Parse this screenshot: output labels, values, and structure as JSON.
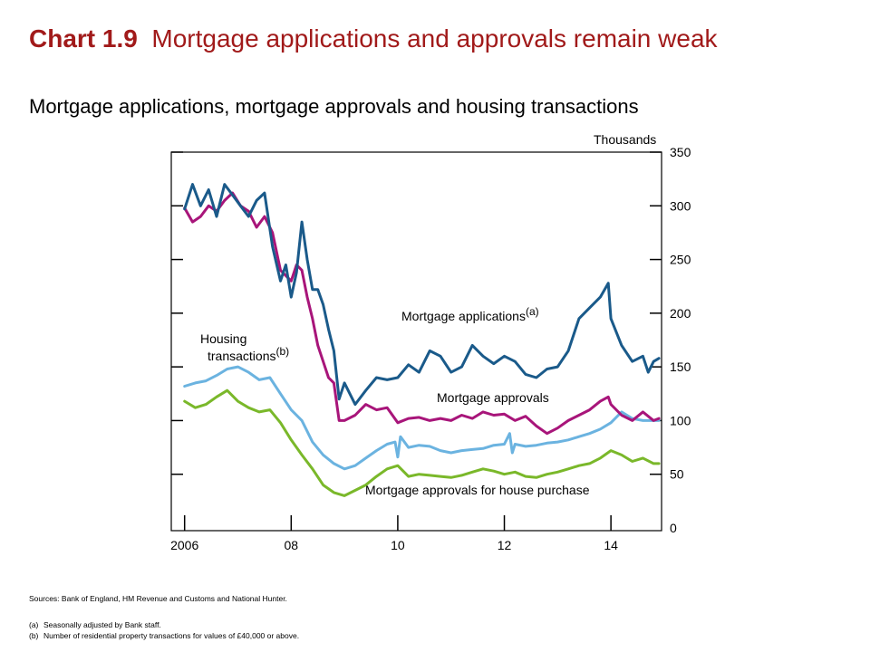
{
  "title": {
    "number": "Chart 1.9",
    "text": "Mortgage applications and approvals remain weak"
  },
  "subtitle": "Mortgage applications, mortgage approvals and housing transactions",
  "chart_data": {
    "type": "line",
    "y_unit_label": "Thousands",
    "ylim": [
      0,
      350
    ],
    "y_ticks": [
      "0",
      "50",
      "100",
      "150",
      "200",
      "250",
      "300",
      "350"
    ],
    "x_range": [
      2005.75,
      2014.95
    ],
    "x_ticks": [
      {
        "value": 2006,
        "label": "2006"
      },
      {
        "value": 2008,
        "label": "08"
      },
      {
        "value": 2010,
        "label": "10"
      },
      {
        "value": 2012,
        "label": "12"
      },
      {
        "value": 2014,
        "label": "14"
      }
    ],
    "grid": false,
    "series": [
      {
        "name": "Mortgage applications",
        "note": "(a)",
        "color": "#1a5a8a",
        "x": [
          2006.0,
          2006.15,
          2006.3,
          2006.45,
          2006.6,
          2006.75,
          2006.9,
          2007.05,
          2007.2,
          2007.35,
          2007.5,
          2007.65,
          2007.8,
          2007.9,
          2008.0,
          2008.1,
          2008.2,
          2008.3,
          2008.4,
          2008.5,
          2008.6,
          2008.7,
          2008.8,
          2008.9,
          2009.0,
          2009.2,
          2009.4,
          2009.6,
          2009.8,
          2010.0,
          2010.2,
          2010.4,
          2010.6,
          2010.8,
          2011.0,
          2011.2,
          2011.4,
          2011.6,
          2011.8,
          2012.0,
          2012.2,
          2012.4,
          2012.6,
          2012.8,
          2013.0,
          2013.2,
          2013.4,
          2013.6,
          2013.8,
          2013.95,
          2014.0,
          2014.2,
          2014.4,
          2014.6,
          2014.7,
          2014.8,
          2014.9
        ],
        "y": [
          297,
          320,
          300,
          315,
          290,
          320,
          310,
          300,
          290,
          305,
          312,
          262,
          230,
          245,
          215,
          238,
          285,
          250,
          222,
          222,
          208,
          185,
          165,
          120,
          135,
          115,
          128,
          140,
          138,
          140,
          152,
          145,
          165,
          160,
          145,
          150,
          170,
          160,
          153,
          160,
          155,
          143,
          140,
          148,
          150,
          165,
          195,
          205,
          215,
          228,
          195,
          170,
          155,
          160,
          145,
          155,
          158
        ]
      },
      {
        "name": "Mortgage approvals",
        "color": "#a8157a",
        "x": [
          2006.0,
          2006.15,
          2006.3,
          2006.45,
          2006.6,
          2006.75,
          2006.9,
          2007.05,
          2007.2,
          2007.35,
          2007.5,
          2007.65,
          2007.8,
          2007.9,
          2008.0,
          2008.1,
          2008.2,
          2008.3,
          2008.4,
          2008.5,
          2008.6,
          2008.7,
          2008.8,
          2008.9,
          2009.0,
          2009.2,
          2009.4,
          2009.6,
          2009.8,
          2010.0,
          2010.2,
          2010.4,
          2010.6,
          2010.8,
          2011.0,
          2011.2,
          2011.4,
          2011.6,
          2011.8,
          2012.0,
          2012.2,
          2012.4,
          2012.6,
          2012.8,
          2013.0,
          2013.2,
          2013.4,
          2013.6,
          2013.8,
          2013.95,
          2014.0,
          2014.2,
          2014.4,
          2014.6,
          2014.8,
          2014.9
        ],
        "y": [
          298,
          285,
          290,
          300,
          295,
          305,
          312,
          300,
          295,
          280,
          290,
          275,
          240,
          235,
          230,
          245,
          240,
          215,
          195,
          170,
          155,
          140,
          135,
          100,
          100,
          105,
          115,
          110,
          112,
          98,
          102,
          103,
          100,
          102,
          100,
          105,
          102,
          108,
          105,
          106,
          100,
          104,
          95,
          88,
          93,
          100,
          105,
          110,
          118,
          122,
          115,
          105,
          100,
          108,
          100,
          102
        ]
      },
      {
        "name": "Housing transactions",
        "note": "(b)",
        "color": "#6bb3e0",
        "x": [
          2006.0,
          2006.2,
          2006.4,
          2006.6,
          2006.8,
          2007.0,
          2007.2,
          2007.4,
          2007.6,
          2007.8,
          2008.0,
          2008.2,
          2008.4,
          2008.6,
          2008.8,
          2009.0,
          2009.2,
          2009.4,
          2009.6,
          2009.8,
          2009.95,
          2010.0,
          2010.05,
          2010.2,
          2010.4,
          2010.6,
          2010.8,
          2011.0,
          2011.2,
          2011.4,
          2011.6,
          2011.8,
          2012.0,
          2012.1,
          2012.15,
          2012.2,
          2012.4,
          2012.6,
          2012.8,
          2013.0,
          2013.2,
          2013.4,
          2013.6,
          2013.8,
          2014.0,
          2014.2,
          2014.4,
          2014.6,
          2014.8,
          2014.9
        ],
        "y": [
          132,
          135,
          137,
          142,
          148,
          150,
          145,
          138,
          140,
          125,
          110,
          100,
          80,
          68,
          60,
          55,
          58,
          65,
          72,
          78,
          80,
          66,
          85,
          75,
          77,
          76,
          72,
          70,
          72,
          73,
          74,
          77,
          78,
          88,
          70,
          78,
          76,
          77,
          79,
          80,
          82,
          85,
          88,
          92,
          98,
          108,
          102,
          100,
          100,
          100
        ]
      },
      {
        "name": "Mortgage approvals for house purchase",
        "color": "#7ab82a",
        "x": [
          2006.0,
          2006.2,
          2006.4,
          2006.6,
          2006.8,
          2007.0,
          2007.2,
          2007.4,
          2007.6,
          2007.8,
          2008.0,
          2008.2,
          2008.4,
          2008.6,
          2008.8,
          2009.0,
          2009.2,
          2009.4,
          2009.6,
          2009.8,
          2010.0,
          2010.2,
          2010.4,
          2010.6,
          2010.8,
          2011.0,
          2011.2,
          2011.4,
          2011.6,
          2011.8,
          2012.0,
          2012.2,
          2012.4,
          2012.6,
          2012.8,
          2013.0,
          2013.2,
          2013.4,
          2013.6,
          2013.8,
          2014.0,
          2014.2,
          2014.4,
          2014.6,
          2014.8,
          2014.9
        ],
        "y": [
          118,
          112,
          115,
          122,
          128,
          118,
          112,
          108,
          110,
          98,
          82,
          68,
          55,
          40,
          33,
          30,
          35,
          40,
          48,
          55,
          58,
          48,
          50,
          49,
          48,
          47,
          49,
          52,
          55,
          53,
          50,
          52,
          48,
          47,
          50,
          52,
          55,
          58,
          60,
          65,
          72,
          68,
          62,
          65,
          60,
          60
        ]
      }
    ]
  },
  "annotations": [
    {
      "text": "Mortgage applications",
      "sup": "(a)"
    },
    {
      "text": "Housing transactions",
      "sup": "(b)"
    },
    {
      "text": "Mortgage approvals"
    },
    {
      "text": "Mortgage approvals for house purchase"
    }
  ],
  "sources": "Sources: Bank of England, HM Revenue and Customs and National Hunter.",
  "notes": [
    {
      "label": "(a)",
      "text": "Seasonally adjusted by Bank staff."
    },
    {
      "label": "(b)",
      "text": "Number of residential property transactions for values of £40,000 or above."
    }
  ]
}
